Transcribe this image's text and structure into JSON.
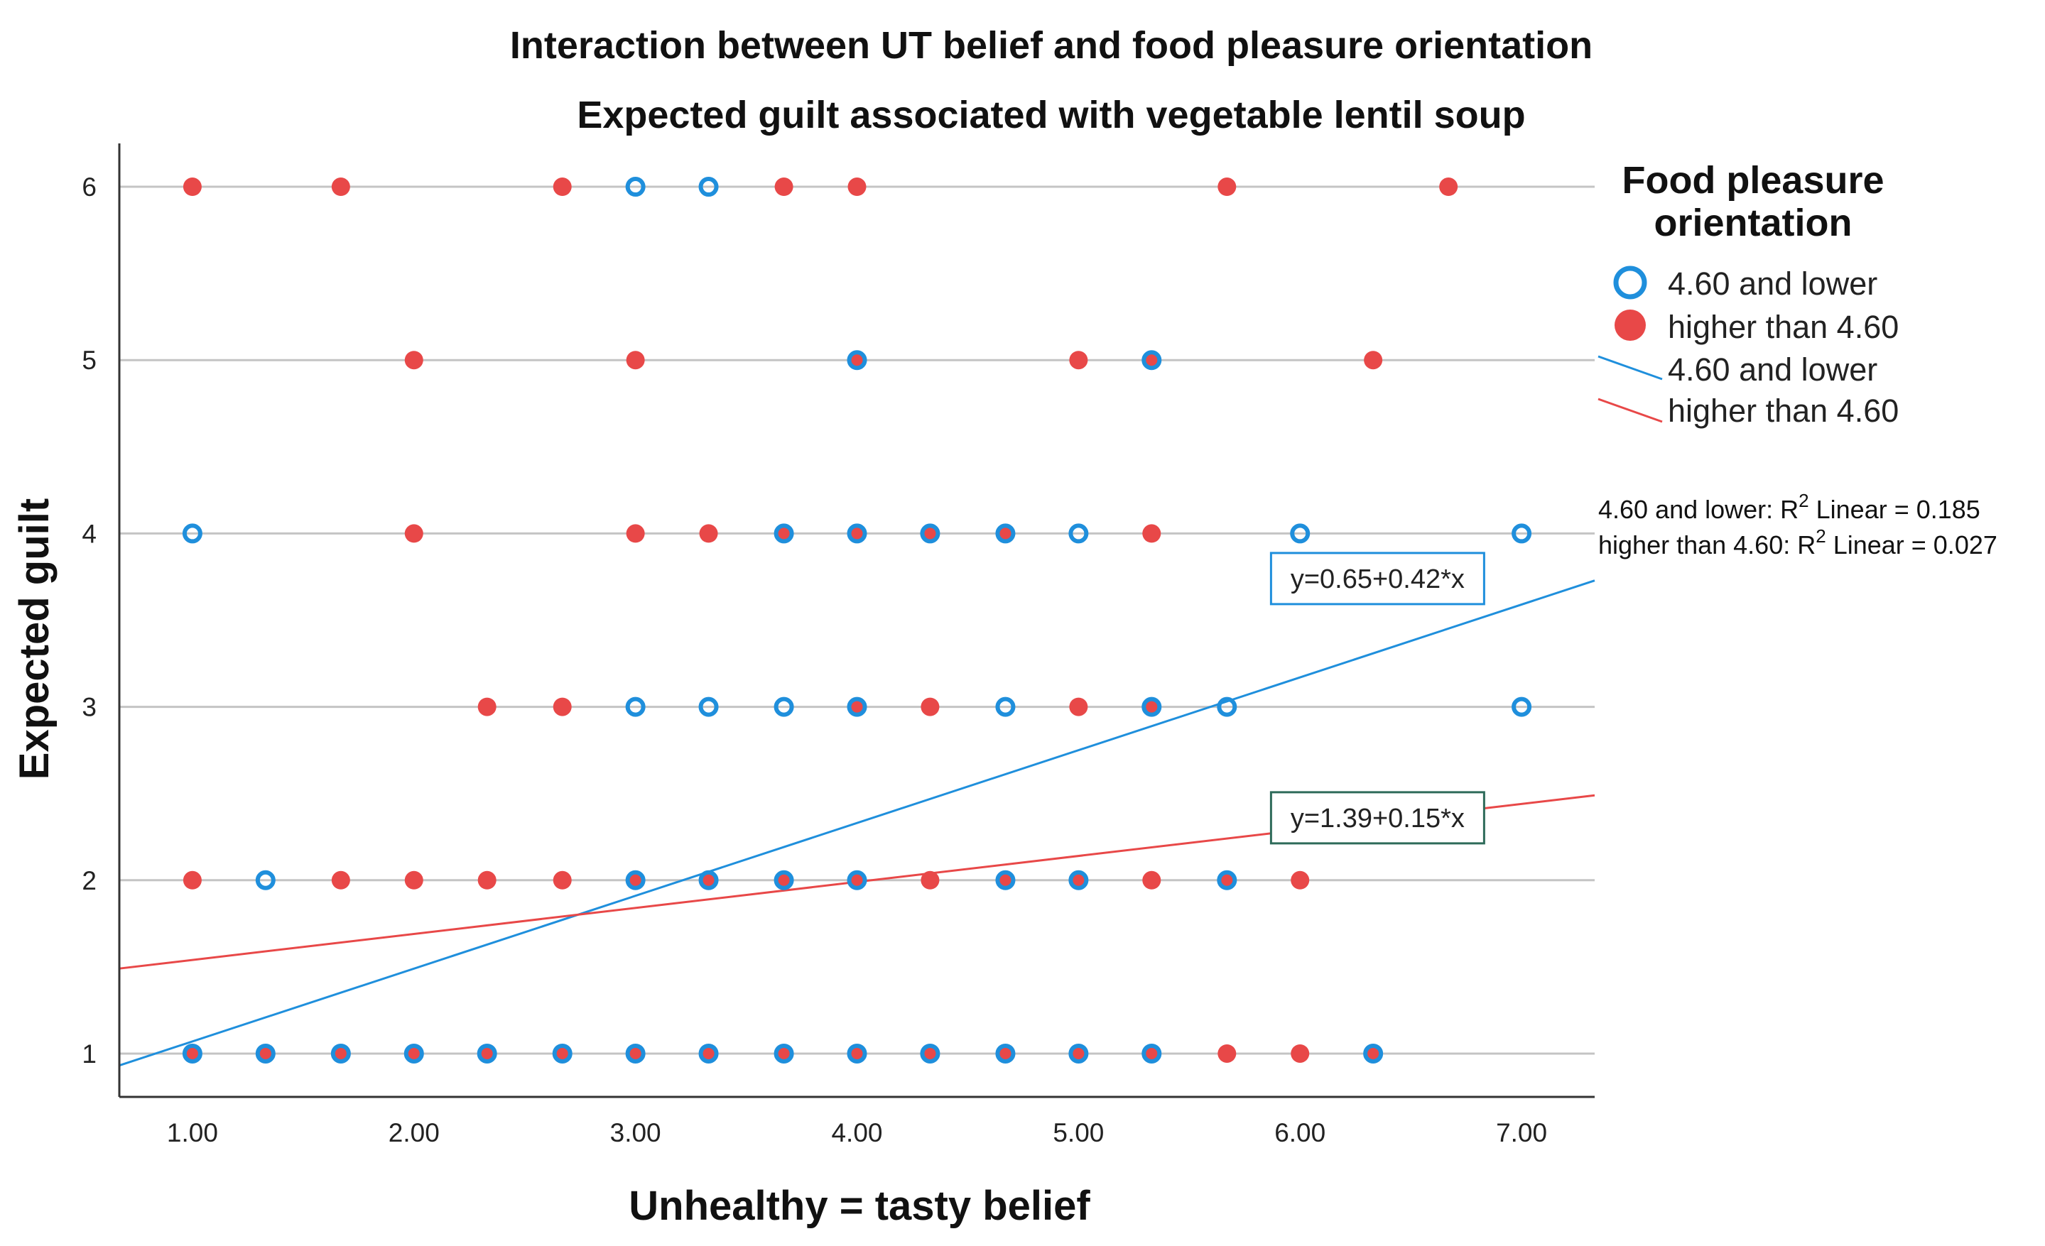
{
  "chart_data": {
    "type": "scatter",
    "title": "Interaction between UT belief and food pleasure orientation",
    "subtitle": "Expected guilt associated with vegetable lentil soup",
    "xlabel": "Unhealthy = tasty belief",
    "ylabel": "Expected guilt",
    "xlim": [
      0.67,
      7.33
    ],
    "ylim": [
      0.75,
      6.25
    ],
    "x_ticks": [
      "1.00",
      "2.00",
      "3.00",
      "4.00",
      "5.00",
      "6.00",
      "7.00"
    ],
    "y_ticks": [
      "1",
      "2",
      "3",
      "4",
      "5",
      "6"
    ],
    "gridlines": "horizontal",
    "legend": {
      "title_line1": "Food pleasure",
      "title_line2": "orientation",
      "position": "right",
      "entries": [
        "4.60 and lower",
        "higher than 4.60",
        "4.60 and lower",
        "higher than 4.60"
      ]
    },
    "r2_labels": [
      {
        "group": "4.60 and lower",
        "label": "4.60 and lower: R",
        "sup": "2",
        "tail": " Linear = 0.185"
      },
      {
        "group": "higher than 4.60",
        "label": "higher than 4.60: R",
        "sup": "2",
        "tail": " Linear = 0.027"
      }
    ],
    "series": [
      {
        "name": "4.60 and lower",
        "marker": "open-circle",
        "color": "#1f8fdc",
        "fit": {
          "intercept": 0.65,
          "slope": 0.42,
          "label": "y=0.65+0.42*x",
          "label_anchor": [
            6.35,
            3.74
          ]
        },
        "points": [
          [
            1.0,
            1
          ],
          [
            1.33,
            1
          ],
          [
            1.67,
            1
          ],
          [
            2.0,
            1
          ],
          [
            2.33,
            1
          ],
          [
            2.67,
            1
          ],
          [
            3.0,
            1
          ],
          [
            3.33,
            1
          ],
          [
            3.67,
            1
          ],
          [
            4.0,
            1
          ],
          [
            4.33,
            1
          ],
          [
            4.67,
            1
          ],
          [
            5.0,
            1
          ],
          [
            5.33,
            1
          ],
          [
            6.33,
            1
          ],
          [
            1.33,
            2
          ],
          [
            3.0,
            2
          ],
          [
            3.33,
            2
          ],
          [
            3.67,
            2
          ],
          [
            4.0,
            2
          ],
          [
            4.67,
            2
          ],
          [
            5.0,
            2
          ],
          [
            5.67,
            2
          ],
          [
            3.0,
            3
          ],
          [
            3.33,
            3
          ],
          [
            3.67,
            3
          ],
          [
            4.0,
            3
          ],
          [
            4.67,
            3
          ],
          [
            5.33,
            3
          ],
          [
            5.67,
            3
          ],
          [
            7.0,
            3
          ],
          [
            1.0,
            4
          ],
          [
            3.67,
            4
          ],
          [
            4.0,
            4
          ],
          [
            4.33,
            4
          ],
          [
            4.67,
            4
          ],
          [
            5.0,
            4
          ],
          [
            6.0,
            4
          ],
          [
            7.0,
            4
          ],
          [
            4.0,
            5
          ],
          [
            5.33,
            5
          ],
          [
            3.0,
            6
          ],
          [
            3.33,
            6
          ]
        ]
      },
      {
        "name": "higher than 4.60",
        "marker": "filled-circle",
        "color": "#e84848",
        "fit": {
          "intercept": 1.39,
          "slope": 0.15,
          "label": "y=1.39+0.15*x",
          "label_anchor": [
            6.35,
            2.36
          ]
        },
        "points": [
          [
            1.0,
            1
          ],
          [
            1.33,
            1
          ],
          [
            1.67,
            1
          ],
          [
            2.0,
            1
          ],
          [
            2.33,
            1
          ],
          [
            2.67,
            1
          ],
          [
            3.0,
            1
          ],
          [
            3.33,
            1
          ],
          [
            3.67,
            1
          ],
          [
            4.0,
            1
          ],
          [
            4.33,
            1
          ],
          [
            4.67,
            1
          ],
          [
            5.0,
            1
          ],
          [
            5.33,
            1
          ],
          [
            5.67,
            1
          ],
          [
            6.0,
            1
          ],
          [
            6.33,
            1
          ],
          [
            1.0,
            2
          ],
          [
            1.67,
            2
          ],
          [
            2.0,
            2
          ],
          [
            2.33,
            2
          ],
          [
            2.67,
            2
          ],
          [
            3.0,
            2
          ],
          [
            3.33,
            2
          ],
          [
            3.67,
            2
          ],
          [
            4.0,
            2
          ],
          [
            4.33,
            2
          ],
          [
            4.67,
            2
          ],
          [
            5.0,
            2
          ],
          [
            5.33,
            2
          ],
          [
            5.67,
            2
          ],
          [
            6.0,
            2
          ],
          [
            2.33,
            3
          ],
          [
            2.67,
            3
          ],
          [
            4.0,
            3
          ],
          [
            4.33,
            3
          ],
          [
            5.0,
            3
          ],
          [
            5.33,
            3
          ],
          [
            2.0,
            4
          ],
          [
            3.0,
            4
          ],
          [
            3.33,
            4
          ],
          [
            3.67,
            4
          ],
          [
            4.0,
            4
          ],
          [
            4.33,
            4
          ],
          [
            4.67,
            4
          ],
          [
            5.33,
            4
          ],
          [
            2.0,
            5
          ],
          [
            3.0,
            5
          ],
          [
            4.0,
            5
          ],
          [
            5.0,
            5
          ],
          [
            5.33,
            5
          ],
          [
            6.33,
            5
          ],
          [
            1.0,
            6
          ],
          [
            1.67,
            6
          ],
          [
            2.67,
            6
          ],
          [
            3.67,
            6
          ],
          [
            4.0,
            6
          ],
          [
            5.67,
            6
          ],
          [
            6.67,
            6
          ]
        ]
      }
    ]
  }
}
